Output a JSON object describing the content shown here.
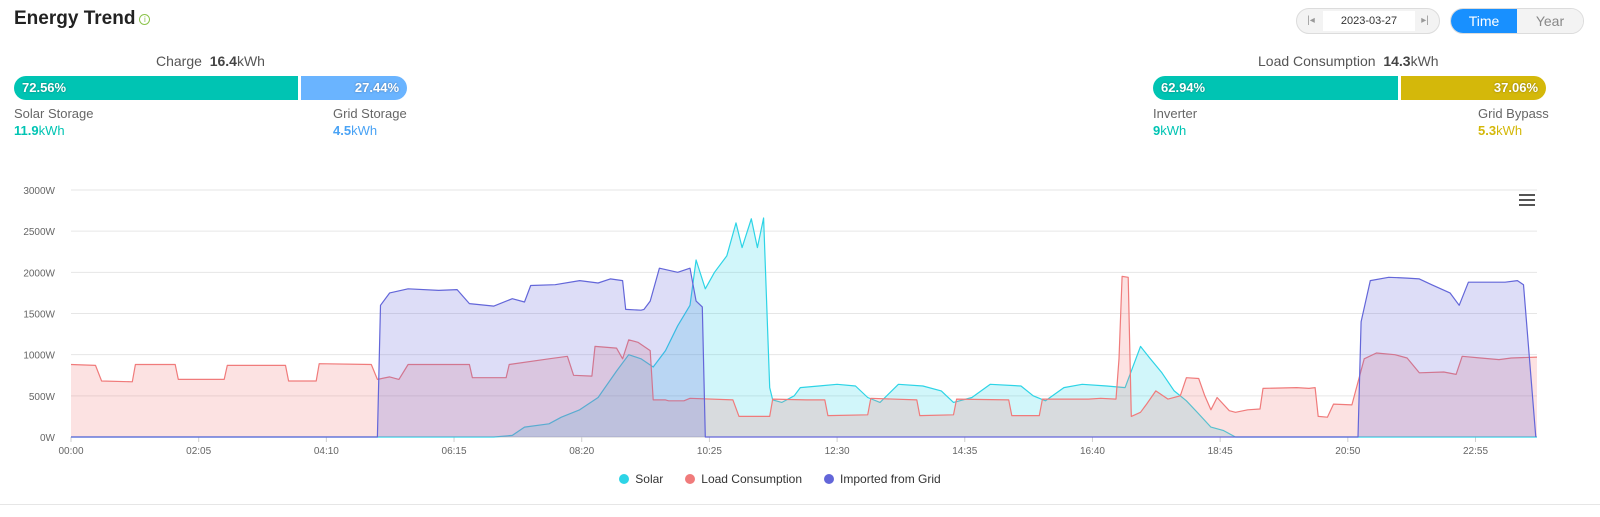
{
  "header": {
    "title": "Energy Trend",
    "info_icon": "info-icon"
  },
  "date_picker": {
    "prev_icon": "skip-back-icon",
    "next_icon": "skip-forward-icon",
    "value": "2023-03-27"
  },
  "mode_toggle": {
    "time_label": "Time",
    "year_label": "Year",
    "active": "Time"
  },
  "charge": {
    "label": "Charge",
    "total": "16.4",
    "unit": "kWh",
    "solar_percent": "72.56%",
    "grid_percent": "27.44%",
    "solar_label": "Solar Storage",
    "solar_value": "11.9",
    "solar_unit": "kWh",
    "grid_label": "Grid Storage",
    "grid_value": "4.5",
    "grid_unit": "kWh",
    "solar_color": "#00c4b3",
    "grid_color": "#6ab4ff"
  },
  "load": {
    "label": "Load Consumption",
    "total": "14.3",
    "unit": "kWh",
    "inverter_percent": "62.94%",
    "bypass_percent": "37.06%",
    "inverter_label": "Inverter",
    "inverter_value": "9",
    "inverter_unit": "kWh",
    "bypass_label": "Grid Bypass",
    "bypass_value": "5.3",
    "bypass_unit": "kWh",
    "inverter_color": "#00c4b3",
    "bypass_color": "#d4b80a"
  },
  "chart_menu_icon": "hamburger-menu-icon",
  "chart_data": {
    "type": "area",
    "title": "",
    "xlabel": "",
    "ylabel": "",
    "ylim": [
      0,
      3000
    ],
    "xlim_hours": [
      0,
      23.92
    ],
    "grid": "horizontal",
    "legend_position": "bottom",
    "x_tick_labels": [
      "00:00",
      "02:05",
      "04:10",
      "06:15",
      "08:20",
      "10:25",
      "12:30",
      "14:35",
      "16:40",
      "18:45",
      "20:50",
      "22:55"
    ],
    "x_tick_hours": [
      0,
      2.0833,
      4.1667,
      6.25,
      8.3333,
      10.4167,
      12.5,
      14.5833,
      16.6667,
      18.75,
      20.8333,
      22.9167
    ],
    "y_tick_labels": [
      "0W",
      "500W",
      "1000W",
      "1500W",
      "2000W",
      "2500W",
      "3000W"
    ],
    "y_tick_values": [
      0,
      500,
      1000,
      1500,
      2000,
      2500,
      3000
    ],
    "series": [
      {
        "name": "Solar",
        "color": "#2dd4e6",
        "points": [
          [
            0,
            0
          ],
          [
            6.9,
            0
          ],
          [
            7.2,
            20
          ],
          [
            7.4,
            120
          ],
          [
            7.8,
            160
          ],
          [
            8.0,
            240
          ],
          [
            8.3,
            330
          ],
          [
            8.6,
            480
          ],
          [
            8.9,
            800
          ],
          [
            9.1,
            1000
          ],
          [
            9.3,
            950
          ],
          [
            9.5,
            850
          ],
          [
            9.7,
            1050
          ],
          [
            9.9,
            1350
          ],
          [
            10.1,
            1600
          ],
          [
            10.2,
            2150
          ],
          [
            10.35,
            1800
          ],
          [
            10.5,
            2000
          ],
          [
            10.7,
            2200
          ],
          [
            10.85,
            2600
          ],
          [
            10.95,
            2300
          ],
          [
            11.1,
            2650
          ],
          [
            11.2,
            2300
          ],
          [
            11.3,
            2660
          ],
          [
            11.4,
            600
          ],
          [
            11.45,
            450
          ],
          [
            11.6,
            420
          ],
          [
            11.8,
            500
          ],
          [
            11.9,
            600
          ],
          [
            12.2,
            620
          ],
          [
            12.5,
            640
          ],
          [
            12.8,
            620
          ],
          [
            13.0,
            480
          ],
          [
            13.2,
            420
          ],
          [
            13.5,
            640
          ],
          [
            13.9,
            620
          ],
          [
            14.2,
            560
          ],
          [
            14.4,
            420
          ],
          [
            14.7,
            480
          ],
          [
            15.0,
            640
          ],
          [
            15.5,
            620
          ],
          [
            15.7,
            500
          ],
          [
            15.9,
            440
          ],
          [
            16.2,
            600
          ],
          [
            16.5,
            640
          ],
          [
            16.9,
            620
          ],
          [
            17.2,
            600
          ],
          [
            17.45,
            1100
          ],
          [
            17.6,
            960
          ],
          [
            17.8,
            780
          ],
          [
            18.0,
            560
          ],
          [
            18.2,
            440
          ],
          [
            18.4,
            280
          ],
          [
            18.6,
            120
          ],
          [
            18.8,
            80
          ],
          [
            18.95,
            20
          ],
          [
            19.0,
            0
          ],
          [
            23.92,
            0
          ]
        ]
      },
      {
        "name": "Load Consumption",
        "color": "#f07b7b",
        "points": [
          [
            0,
            880
          ],
          [
            0.4,
            870
          ],
          [
            0.5,
            680
          ],
          [
            1.0,
            670
          ],
          [
            1.05,
            880
          ],
          [
            1.7,
            880
          ],
          [
            1.75,
            700
          ],
          [
            2.5,
            700
          ],
          [
            2.55,
            870
          ],
          [
            3.5,
            870
          ],
          [
            3.55,
            680
          ],
          [
            4.0,
            680
          ],
          [
            4.05,
            890
          ],
          [
            4.9,
            880
          ],
          [
            5.0,
            700
          ],
          [
            5.2,
            730
          ],
          [
            5.35,
            700
          ],
          [
            5.5,
            880
          ],
          [
            6.5,
            880
          ],
          [
            6.55,
            720
          ],
          [
            7.1,
            720
          ],
          [
            7.15,
            880
          ],
          [
            7.8,
            950
          ],
          [
            8.1,
            980
          ],
          [
            8.2,
            750
          ],
          [
            8.5,
            740
          ],
          [
            8.55,
            1100
          ],
          [
            8.9,
            1080
          ],
          [
            9.0,
            950
          ],
          [
            9.1,
            1180
          ],
          [
            9.25,
            1150
          ],
          [
            9.45,
            1050
          ],
          [
            9.5,
            450
          ],
          [
            9.7,
            450
          ],
          [
            9.75,
            440
          ],
          [
            10.0,
            440
          ],
          [
            10.1,
            470
          ],
          [
            10.8,
            450
          ],
          [
            10.9,
            250
          ],
          [
            11.4,
            250
          ],
          [
            11.45,
            460
          ],
          [
            12.0,
            450
          ],
          [
            12.3,
            450
          ],
          [
            12.35,
            260
          ],
          [
            13.0,
            270
          ],
          [
            13.05,
            470
          ],
          [
            13.8,
            450
          ],
          [
            13.85,
            260
          ],
          [
            14.4,
            270
          ],
          [
            14.45,
            460
          ],
          [
            15.3,
            450
          ],
          [
            15.35,
            260
          ],
          [
            15.8,
            260
          ],
          [
            15.85,
            460
          ],
          [
            16.6,
            460
          ],
          [
            16.8,
            470
          ],
          [
            17.05,
            460
          ],
          [
            17.1,
            950
          ],
          [
            17.15,
            1950
          ],
          [
            17.25,
            1940
          ],
          [
            17.3,
            250
          ],
          [
            17.45,
            300
          ],
          [
            17.55,
            400
          ],
          [
            17.7,
            560
          ],
          [
            17.9,
            460
          ],
          [
            18.1,
            500
          ],
          [
            18.2,
            720
          ],
          [
            18.4,
            710
          ],
          [
            18.5,
            500
          ],
          [
            18.6,
            330
          ],
          [
            18.7,
            480
          ],
          [
            18.9,
            320
          ],
          [
            19.0,
            300
          ],
          [
            19.2,
            330
          ],
          [
            19.4,
            340
          ],
          [
            19.45,
            590
          ],
          [
            20.0,
            600
          ],
          [
            20.2,
            590
          ],
          [
            20.3,
            600
          ],
          [
            20.35,
            250
          ],
          [
            20.5,
            240
          ],
          [
            20.6,
            400
          ],
          [
            20.9,
            390
          ],
          [
            21.1,
            950
          ],
          [
            21.3,
            1020
          ],
          [
            21.6,
            1000
          ],
          [
            21.8,
            960
          ],
          [
            22.0,
            780
          ],
          [
            22.4,
            790
          ],
          [
            22.6,
            760
          ],
          [
            22.7,
            980
          ],
          [
            23.0,
            960
          ],
          [
            23.3,
            940
          ],
          [
            23.5,
            960
          ],
          [
            23.92,
            970
          ]
        ]
      },
      {
        "name": "Imported from Grid",
        "color": "#6366d9",
        "points": [
          [
            0,
            0
          ],
          [
            5.0,
            0
          ],
          [
            5.05,
            1600
          ],
          [
            5.2,
            1750
          ],
          [
            5.5,
            1800
          ],
          [
            6.0,
            1780
          ],
          [
            6.3,
            1790
          ],
          [
            6.5,
            1620
          ],
          [
            6.9,
            1590
          ],
          [
            7.2,
            1680
          ],
          [
            7.4,
            1640
          ],
          [
            7.5,
            1840
          ],
          [
            7.9,
            1850
          ],
          [
            8.3,
            1900
          ],
          [
            8.6,
            1870
          ],
          [
            8.8,
            1920
          ],
          [
            9.0,
            1900
          ],
          [
            9.05,
            1550
          ],
          [
            9.3,
            1540
          ],
          [
            9.35,
            1550
          ],
          [
            9.45,
            1650
          ],
          [
            9.6,
            2050
          ],
          [
            9.9,
            2000
          ],
          [
            10.1,
            2050
          ],
          [
            10.2,
            1650
          ],
          [
            10.3,
            1580
          ],
          [
            10.35,
            0
          ],
          [
            21.0,
            0
          ],
          [
            21.05,
            1400
          ],
          [
            21.2,
            1900
          ],
          [
            21.5,
            1940
          ],
          [
            21.8,
            1930
          ],
          [
            22.0,
            1920
          ],
          [
            22.2,
            1850
          ],
          [
            22.5,
            1750
          ],
          [
            22.65,
            1600
          ],
          [
            22.8,
            1880
          ],
          [
            23.1,
            1880
          ],
          [
            23.4,
            1880
          ],
          [
            23.6,
            1900
          ],
          [
            23.7,
            1850
          ],
          [
            23.9,
            0
          ]
        ]
      }
    ]
  }
}
